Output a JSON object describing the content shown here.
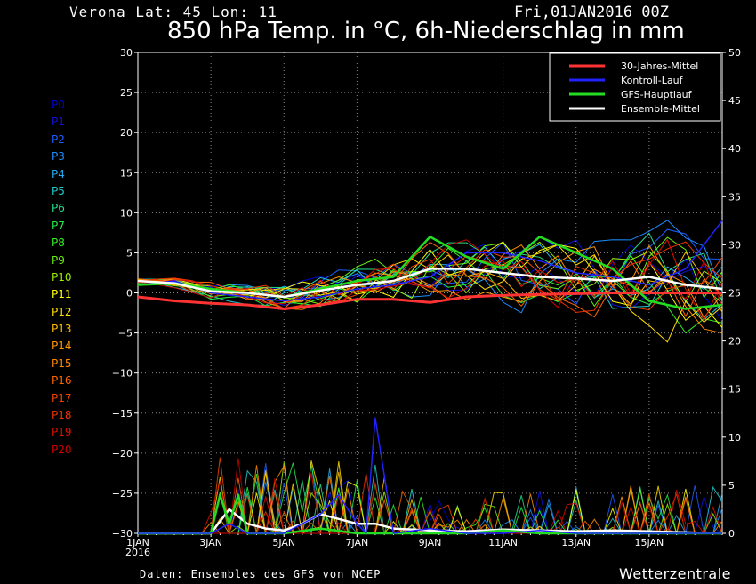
{
  "header": {
    "location": "Verona   Lat: 45 Lon: 11",
    "date": "Fri,01JAN2016 00Z"
  },
  "footer": {
    "source": "Daten: Ensembles des GFS von NCEP",
    "brand": "Wetterzentrale"
  },
  "members": [
    {
      "label": "P0",
      "color": "#0000cc"
    },
    {
      "label": "P1",
      "color": "#1010dd"
    },
    {
      "label": "P2",
      "color": "#1e5cff"
    },
    {
      "label": "P3",
      "color": "#1b8cff"
    },
    {
      "label": "P4",
      "color": "#22aaee"
    },
    {
      "label": "P5",
      "color": "#22cccc"
    },
    {
      "label": "P6",
      "color": "#22dd88"
    },
    {
      "label": "P7",
      "color": "#22ee44"
    },
    {
      "label": "P8",
      "color": "#33ee22"
    },
    {
      "label": "P9",
      "color": "#66ee11"
    },
    {
      "label": "P10",
      "color": "#99ee00"
    },
    {
      "label": "P11",
      "color": "#ffff00"
    },
    {
      "label": "P12",
      "color": "#ffdd00"
    },
    {
      "label": "P13",
      "color": "#ffbb00"
    },
    {
      "label": "P14",
      "color": "#ff9900"
    },
    {
      "label": "P15",
      "color": "#ff8800"
    },
    {
      "label": "P16",
      "color": "#ff6600"
    },
    {
      "label": "P17",
      "color": "#ee4400"
    },
    {
      "label": "P18",
      "color": "#ee3300"
    },
    {
      "label": "P19",
      "color": "#dd1100"
    },
    {
      "label": "P20",
      "color": "#cc0000"
    }
  ],
  "chart_data": {
    "type": "line",
    "title": "850 hPa Temp. in °C, 6h-Niederschlag in mm",
    "x_ticks": [
      "1JAN\n2016",
      "3JAN",
      "5JAN",
      "7JAN",
      "9JAN",
      "11JAN",
      "13JAN",
      "15JAN"
    ],
    "x_range_days": [
      0,
      16
    ],
    "y_left_range": [
      -30,
      30
    ],
    "y_left_ticks": [
      30,
      25,
      20,
      15,
      10,
      5,
      0,
      -5,
      -10,
      -15,
      -20,
      -25,
      -30
    ],
    "y_right_range": [
      0,
      50
    ],
    "y_right_ticks": [
      50,
      45,
      40,
      35,
      30,
      25,
      20,
      15,
      10,
      5,
      0
    ],
    "grid": true,
    "legend_position": "top-right",
    "legend": [
      {
        "name": "30-Jahres-Mittel",
        "color": "#ff3333"
      },
      {
        "name": "Kontroll-Lauf",
        "color": "#2222ff"
      },
      {
        "name": "GFS-Hauptlauf",
        "color": "#22dd22"
      },
      {
        "name": "Ensemble-Mittel",
        "color": "#ffffff"
      }
    ],
    "temperature_series": [
      {
        "name": "30-Jahres-Mittel",
        "color": "#ff3333",
        "width": 3,
        "days": [
          0,
          1,
          2,
          3,
          4,
          5,
          6,
          7,
          8,
          9,
          10,
          11,
          12,
          13,
          14,
          15,
          16
        ],
        "values": [
          -0.5,
          -1,
          -1.3,
          -1.5,
          -2,
          -1.5,
          -0.8,
          -0.8,
          -1.2,
          -0.5,
          -0.3,
          -0.2,
          -0.1,
          0,
          0,
          0,
          0
        ]
      },
      {
        "name": "Kontroll-Lauf",
        "color": "#2222ff",
        "width": 1.5,
        "days": [
          0,
          1,
          2,
          3,
          4,
          5,
          6,
          7,
          8,
          9,
          10,
          11,
          12,
          13,
          14,
          15,
          16
        ],
        "values": [
          1,
          1.5,
          0,
          -0.5,
          -1,
          -0.5,
          0.5,
          1,
          2,
          5,
          5,
          4,
          2.5,
          2,
          1,
          3,
          9
        ]
      },
      {
        "name": "GFS-Hauptlauf",
        "color": "#22dd22",
        "width": 2.5,
        "days": [
          0,
          1,
          2,
          3,
          4,
          5,
          6,
          7,
          8,
          9,
          10,
          11,
          12,
          13,
          14,
          15,
          16
        ],
        "values": [
          1,
          1.2,
          0.5,
          0,
          -0.5,
          0.5,
          1.5,
          2,
          7,
          4.5,
          3,
          7,
          5,
          3,
          -1,
          -2,
          -1.5
        ]
      },
      {
        "name": "Ensemble-Mittel",
        "color": "#ffffff",
        "width": 2.5,
        "days": [
          0,
          1,
          2,
          3,
          4,
          5,
          6,
          7,
          8,
          9,
          10,
          11,
          12,
          13,
          14,
          15,
          16
        ],
        "values": [
          1.5,
          1.2,
          0.2,
          0,
          -0.5,
          0.3,
          1,
          1.5,
          3,
          3,
          2.5,
          2,
          1.8,
          1.5,
          2,
          1,
          0.5
        ]
      }
    ],
    "precipitation_series": [
      {
        "name": "Ensemble-Mittel",
        "color": "#ffffff",
        "width": 2.5,
        "days": [
          0,
          1,
          2,
          2.5,
          3,
          3.5,
          4,
          4.5,
          5,
          5.5,
          6,
          6.5,
          7,
          8,
          9,
          10,
          11,
          12,
          13,
          14,
          15,
          16
        ],
        "values": [
          0,
          0,
          0,
          2.5,
          1,
          0.5,
          0.3,
          1,
          2,
          1.5,
          1,
          1,
          0.5,
          0.3,
          0.2,
          0.4,
          0.3,
          0.2,
          0.3,
          0.2,
          0.1,
          0
        ]
      },
      {
        "name": "GFS-Hauptlauf",
        "color": "#22dd22",
        "width": 2.5,
        "days": [
          0,
          1.5,
          2,
          2.25,
          2.5,
          2.75,
          3,
          3.5,
          4,
          5,
          6,
          7,
          8,
          9,
          10,
          11,
          12,
          13,
          14,
          15,
          16
        ],
        "values": [
          0,
          0,
          0,
          4,
          1,
          4,
          0,
          0,
          0,
          0.5,
          0,
          0,
          0,
          0,
          0.3,
          0,
          0,
          0,
          0,
          0,
          0
        ]
      },
      {
        "name": "Kontroll-Lauf",
        "color": "#2222ff",
        "width": 1.5,
        "days": [
          0,
          2,
          2.5,
          3,
          4,
          5,
          5.5,
          6,
          6.25,
          6.5,
          7,
          8,
          9,
          10,
          11,
          12,
          13,
          14,
          15,
          16
        ],
        "values": [
          0,
          0,
          1,
          0,
          0,
          2,
          4,
          1,
          0,
          12,
          0,
          0.5,
          0,
          0,
          0.3,
          0,
          0,
          0,
          0,
          0
        ]
      }
    ]
  }
}
